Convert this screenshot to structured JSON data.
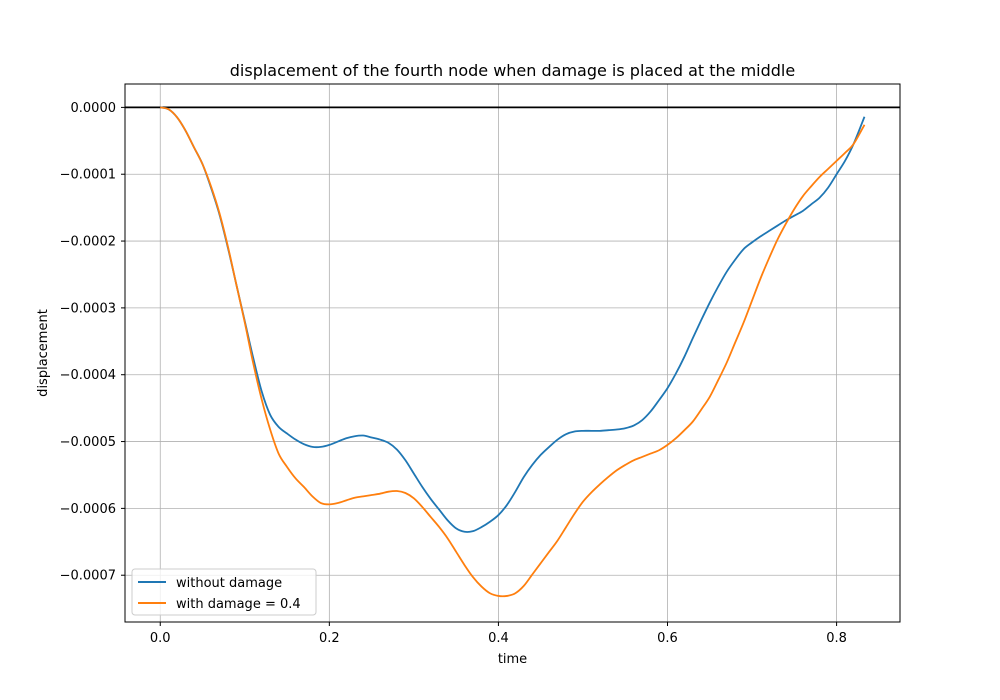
{
  "chart_data": {
    "type": "line",
    "title": "displacement of the fourth node when damage is placed at the middle",
    "xlabel": "time",
    "ylabel": "displacement",
    "xlim": [
      -0.0417,
      0.875
    ],
    "ylim": [
      -0.00077,
      3.5e-05
    ],
    "xticks": [
      0.0,
      0.2,
      0.4,
      0.6,
      0.8
    ],
    "xtick_labels": [
      "0.0",
      "0.2",
      "0.4",
      "0.6",
      "0.8"
    ],
    "yticks": [
      0.0,
      -0.0001,
      -0.0002,
      -0.0003,
      -0.0004,
      -0.0005,
      -0.0006,
      -0.0007
    ],
    "ytick_labels": [
      "0.0000",
      "−0.0001",
      "−0.0002",
      "−0.0003",
      "−0.0004",
      "−0.0005",
      "−0.0006",
      "−0.0007"
    ],
    "grid": true,
    "legend_position": "lower-left",
    "reference_line": {
      "y": 0.0,
      "color": "#000000"
    },
    "series": [
      {
        "name": "without damage",
        "color": "#1f77b4",
        "x": [
          0.0,
          0.01,
          0.02,
          0.03,
          0.04,
          0.05,
          0.06,
          0.07,
          0.08,
          0.09,
          0.1,
          0.11,
          0.12,
          0.13,
          0.14,
          0.15,
          0.16,
          0.17,
          0.18,
          0.19,
          0.2,
          0.21,
          0.22,
          0.23,
          0.24,
          0.25,
          0.26,
          0.27,
          0.28,
          0.29,
          0.3,
          0.31,
          0.32,
          0.33,
          0.34,
          0.35,
          0.36,
          0.37,
          0.38,
          0.39,
          0.4,
          0.41,
          0.42,
          0.43,
          0.44,
          0.45,
          0.46,
          0.47,
          0.48,
          0.49,
          0.5,
          0.51,
          0.52,
          0.53,
          0.54,
          0.55,
          0.56,
          0.57,
          0.58,
          0.59,
          0.6,
          0.61,
          0.62,
          0.63,
          0.64,
          0.65,
          0.66,
          0.67,
          0.68,
          0.69,
          0.7,
          0.71,
          0.72,
          0.73,
          0.74,
          0.75,
          0.76,
          0.77,
          0.78,
          0.79,
          0.8,
          0.81,
          0.82,
          0.833
        ],
        "y": [
          0.0,
          -3e-06,
          -1.5e-05,
          -3.5e-05,
          -6e-05,
          -8.5e-05,
          -0.00012,
          -0.00016,
          -0.00021,
          -0.000265,
          -0.00032,
          -0.000375,
          -0.000425,
          -0.00046,
          -0.000478,
          -0.000488,
          -0.000497,
          -0.000504,
          -0.000508,
          -0.000508,
          -0.000505,
          -0.0005,
          -0.000495,
          -0.000492,
          -0.000491,
          -0.000494,
          -0.000497,
          -0.000502,
          -0.000512,
          -0.000528,
          -0.000548,
          -0.000568,
          -0.000586,
          -0.000602,
          -0.000618,
          -0.00063,
          -0.000635,
          -0.000634,
          -0.000628,
          -0.00062,
          -0.00061,
          -0.000595,
          -0.000575,
          -0.000553,
          -0.000535,
          -0.00052,
          -0.000508,
          -0.000497,
          -0.000489,
          -0.000485,
          -0.000484,
          -0.000484,
          -0.000484,
          -0.000483,
          -0.000482,
          -0.00048,
          -0.000476,
          -0.000468,
          -0.000455,
          -0.000438,
          -0.00042,
          -0.000398,
          -0.000373,
          -0.000345,
          -0.000318,
          -0.000292,
          -0.000268,
          -0.000246,
          -0.000228,
          -0.000212,
          -0.000202,
          -0.000193,
          -0.000185,
          -0.000177,
          -0.000169,
          -0.000162,
          -0.000155,
          -0.000145,
          -0.000135,
          -0.00012,
          -0.0001,
          -8e-05,
          -5.5e-05,
          -1.4e-05
        ]
      },
      {
        "name": "with damage = 0.4",
        "color": "#ff7f0e",
        "x": [
          0.0,
          0.01,
          0.02,
          0.03,
          0.04,
          0.05,
          0.06,
          0.07,
          0.08,
          0.09,
          0.1,
          0.11,
          0.12,
          0.13,
          0.14,
          0.15,
          0.16,
          0.17,
          0.18,
          0.19,
          0.2,
          0.21,
          0.22,
          0.23,
          0.24,
          0.25,
          0.26,
          0.27,
          0.28,
          0.29,
          0.3,
          0.31,
          0.32,
          0.33,
          0.34,
          0.35,
          0.36,
          0.37,
          0.38,
          0.39,
          0.4,
          0.41,
          0.42,
          0.43,
          0.44,
          0.45,
          0.46,
          0.47,
          0.48,
          0.49,
          0.5,
          0.51,
          0.52,
          0.53,
          0.54,
          0.55,
          0.56,
          0.57,
          0.58,
          0.59,
          0.6,
          0.61,
          0.62,
          0.63,
          0.64,
          0.65,
          0.66,
          0.67,
          0.68,
          0.69,
          0.7,
          0.71,
          0.72,
          0.73,
          0.74,
          0.75,
          0.76,
          0.77,
          0.78,
          0.79,
          0.8,
          0.81,
          0.82,
          0.833
        ],
        "y": [
          0.0,
          -3e-06,
          -1.5e-05,
          -3.5e-05,
          -6e-05,
          -8.5e-05,
          -0.000118,
          -0.000158,
          -0.000208,
          -0.000265,
          -0.000322,
          -0.000383,
          -0.000437,
          -0.000482,
          -0.000518,
          -0.000538,
          -0.000555,
          -0.000568,
          -0.000582,
          -0.000592,
          -0.000594,
          -0.000592,
          -0.000588,
          -0.000584,
          -0.000582,
          -0.00058,
          -0.000578,
          -0.000575,
          -0.000574,
          -0.000577,
          -0.000585,
          -0.000598,
          -0.000613,
          -0.000628,
          -0.000645,
          -0.000665,
          -0.000685,
          -0.000703,
          -0.000717,
          -0.000727,
          -0.000731,
          -0.000731,
          -0.000727,
          -0.000716,
          -0.000699,
          -0.000682,
          -0.000665,
          -0.000648,
          -0.000628,
          -0.000608,
          -0.00059,
          -0.000576,
          -0.000564,
          -0.000553,
          -0.000543,
          -0.000535,
          -0.000528,
          -0.000523,
          -0.000518,
          -0.000513,
          -0.000505,
          -0.000495,
          -0.000483,
          -0.00047,
          -0.000452,
          -0.000433,
          -0.000408,
          -0.000382,
          -0.000352,
          -0.000322,
          -0.000289,
          -0.000256,
          -0.000226,
          -0.000198,
          -0.000174,
          -0.000152,
          -0.000133,
          -0.000118,
          -0.000104,
          -9.2e-05,
          -8e-05,
          -6.8e-05,
          -5.5e-05,
          -2.6e-05
        ]
      }
    ]
  }
}
